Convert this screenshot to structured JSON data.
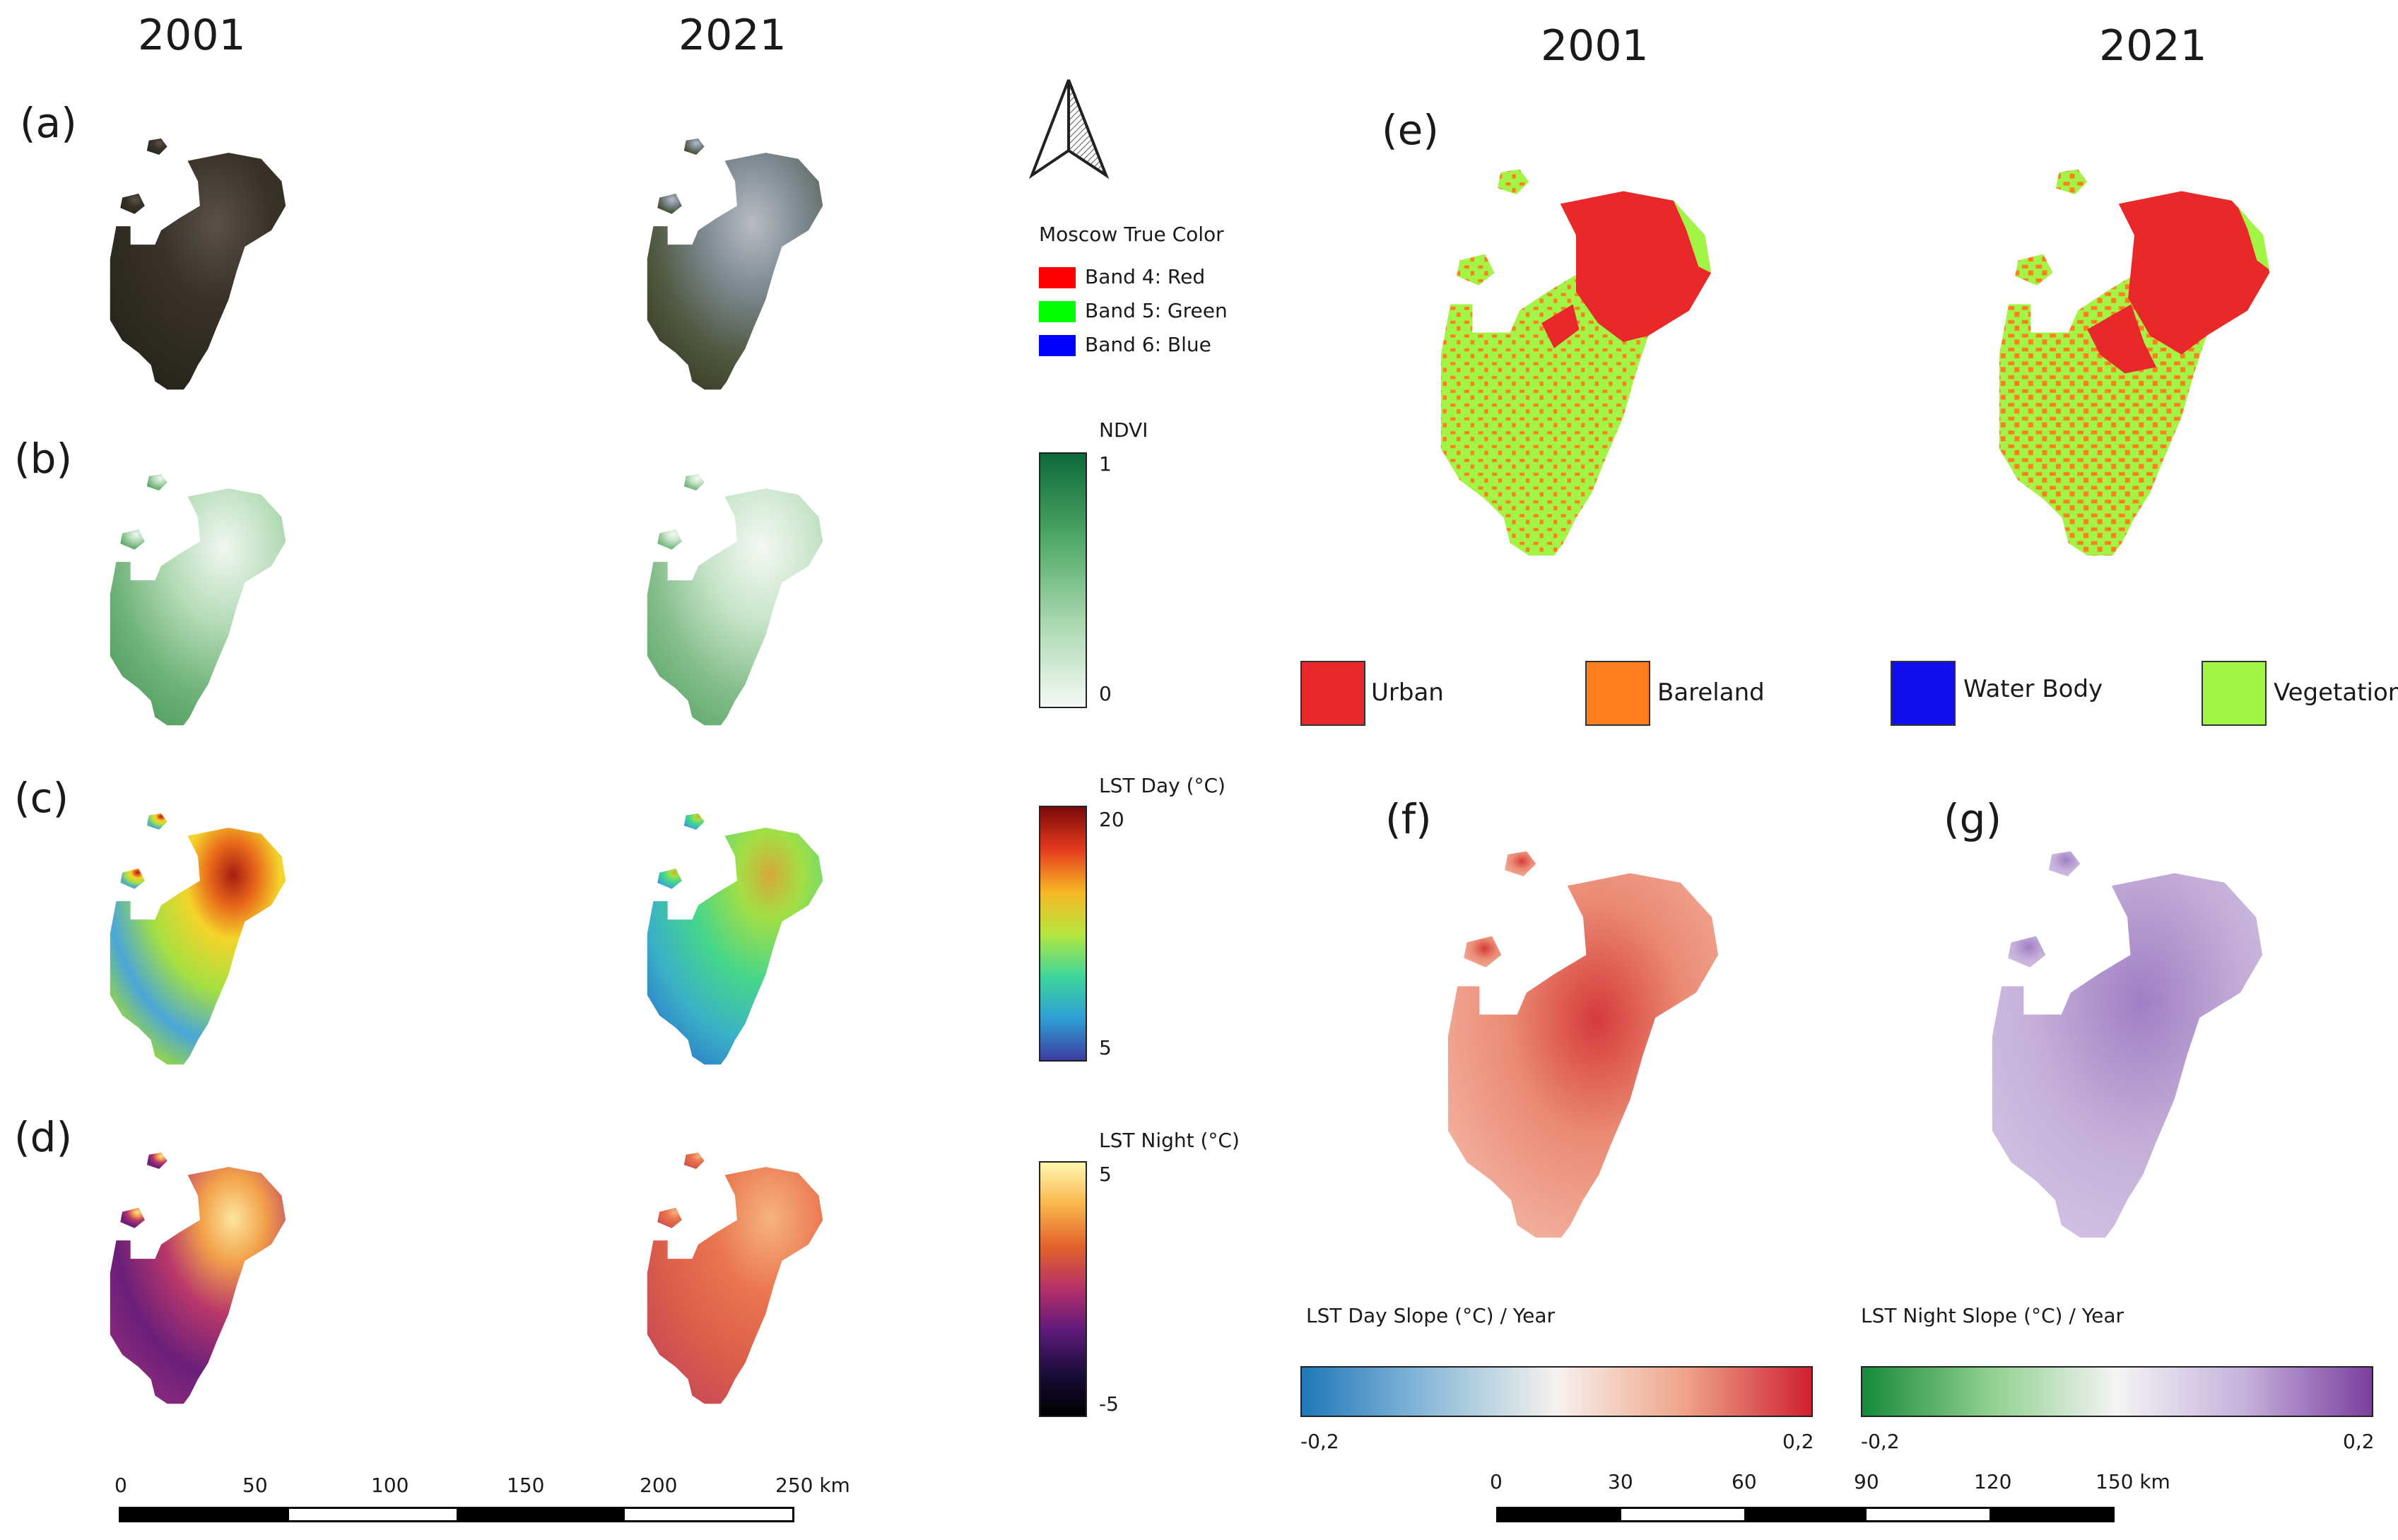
{
  "columns": {
    "left_2001": "2001",
    "left_2021": "2021",
    "right_2001": "2001",
    "right_2021": "2021"
  },
  "panels": {
    "a": "(a)",
    "b": "(b)",
    "c": "(c)",
    "d": "(d)",
    "e": "(e)",
    "f": "(f)",
    "g": "(g)"
  },
  "true_color_legend": {
    "title": "Moscow True Color",
    "items": [
      {
        "label": "Band 4: Red",
        "color": "#ff0000"
      },
      {
        "label": "Band 5: Green",
        "color": "#00ff00"
      },
      {
        "label": "Band 6: Blue",
        "color": "#0000ff"
      }
    ]
  },
  "ndvi_legend": {
    "title": "NDVI",
    "max": "1",
    "min": "0"
  },
  "lst_day_legend": {
    "title": "LST Day (°C)",
    "max": "20",
    "min": "5"
  },
  "lst_night_legend": {
    "title": "LST Night (°C)",
    "max": "5",
    "min": "-5"
  },
  "landcover_legend": [
    {
      "label": "Urban",
      "color": "#e8282b"
    },
    {
      "label": "Bareland",
      "color": "#ff7f1f"
    },
    {
      "label": "Water Body",
      "color": "#1010ee"
    },
    {
      "label": "Vegetation",
      "color": "#a3f545"
    }
  ],
  "slope_day_legend": {
    "title": "LST Day Slope (°C) / Year",
    "min": "-0,2",
    "max": "0,2"
  },
  "slope_night_legend": {
    "title": "LST Night Slope (°C) / Year",
    "min": "-0,2",
    "max": "0,2"
  },
  "scale_left": {
    "labels": [
      "0",
      "50",
      "100",
      "150",
      "200",
      "250 km"
    ]
  },
  "scale_right": {
    "labels": [
      "0",
      "30",
      "60",
      "90",
      "120",
      "150 km"
    ]
  }
}
